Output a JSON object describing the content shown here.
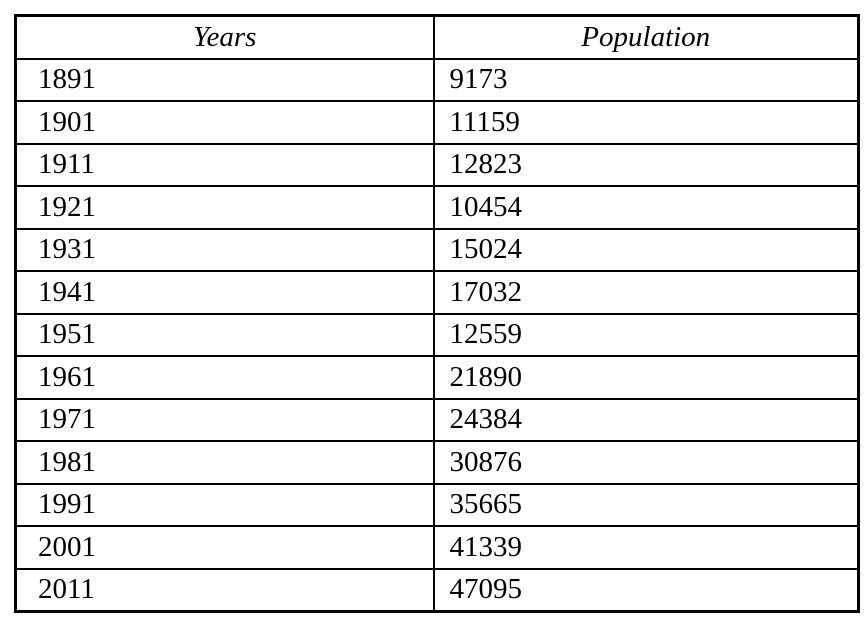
{
  "colors": {
    "background": "#ffffff",
    "border": "#000000",
    "text": "#000000"
  },
  "chart_data": {
    "type": "table",
    "columns": [
      "Years",
      "Population"
    ],
    "rows": [
      {
        "year": "1891",
        "population": "9173"
      },
      {
        "year": "1901",
        "population": "11159"
      },
      {
        "year": "1911",
        "population": "12823"
      },
      {
        "year": "1921",
        "population": "10454"
      },
      {
        "year": "1931",
        "population": "15024"
      },
      {
        "year": "1941",
        "population": "17032"
      },
      {
        "year": "1951",
        "population": "12559"
      },
      {
        "year": "1961",
        "population": "21890"
      },
      {
        "year": "1971",
        "population": "24384"
      },
      {
        "year": "1981",
        "population": "30876"
      },
      {
        "year": "1991",
        "population": "35665"
      },
      {
        "year": "2001",
        "population": "41339"
      },
      {
        "year": "2011",
        "population": "47095"
      }
    ]
  }
}
